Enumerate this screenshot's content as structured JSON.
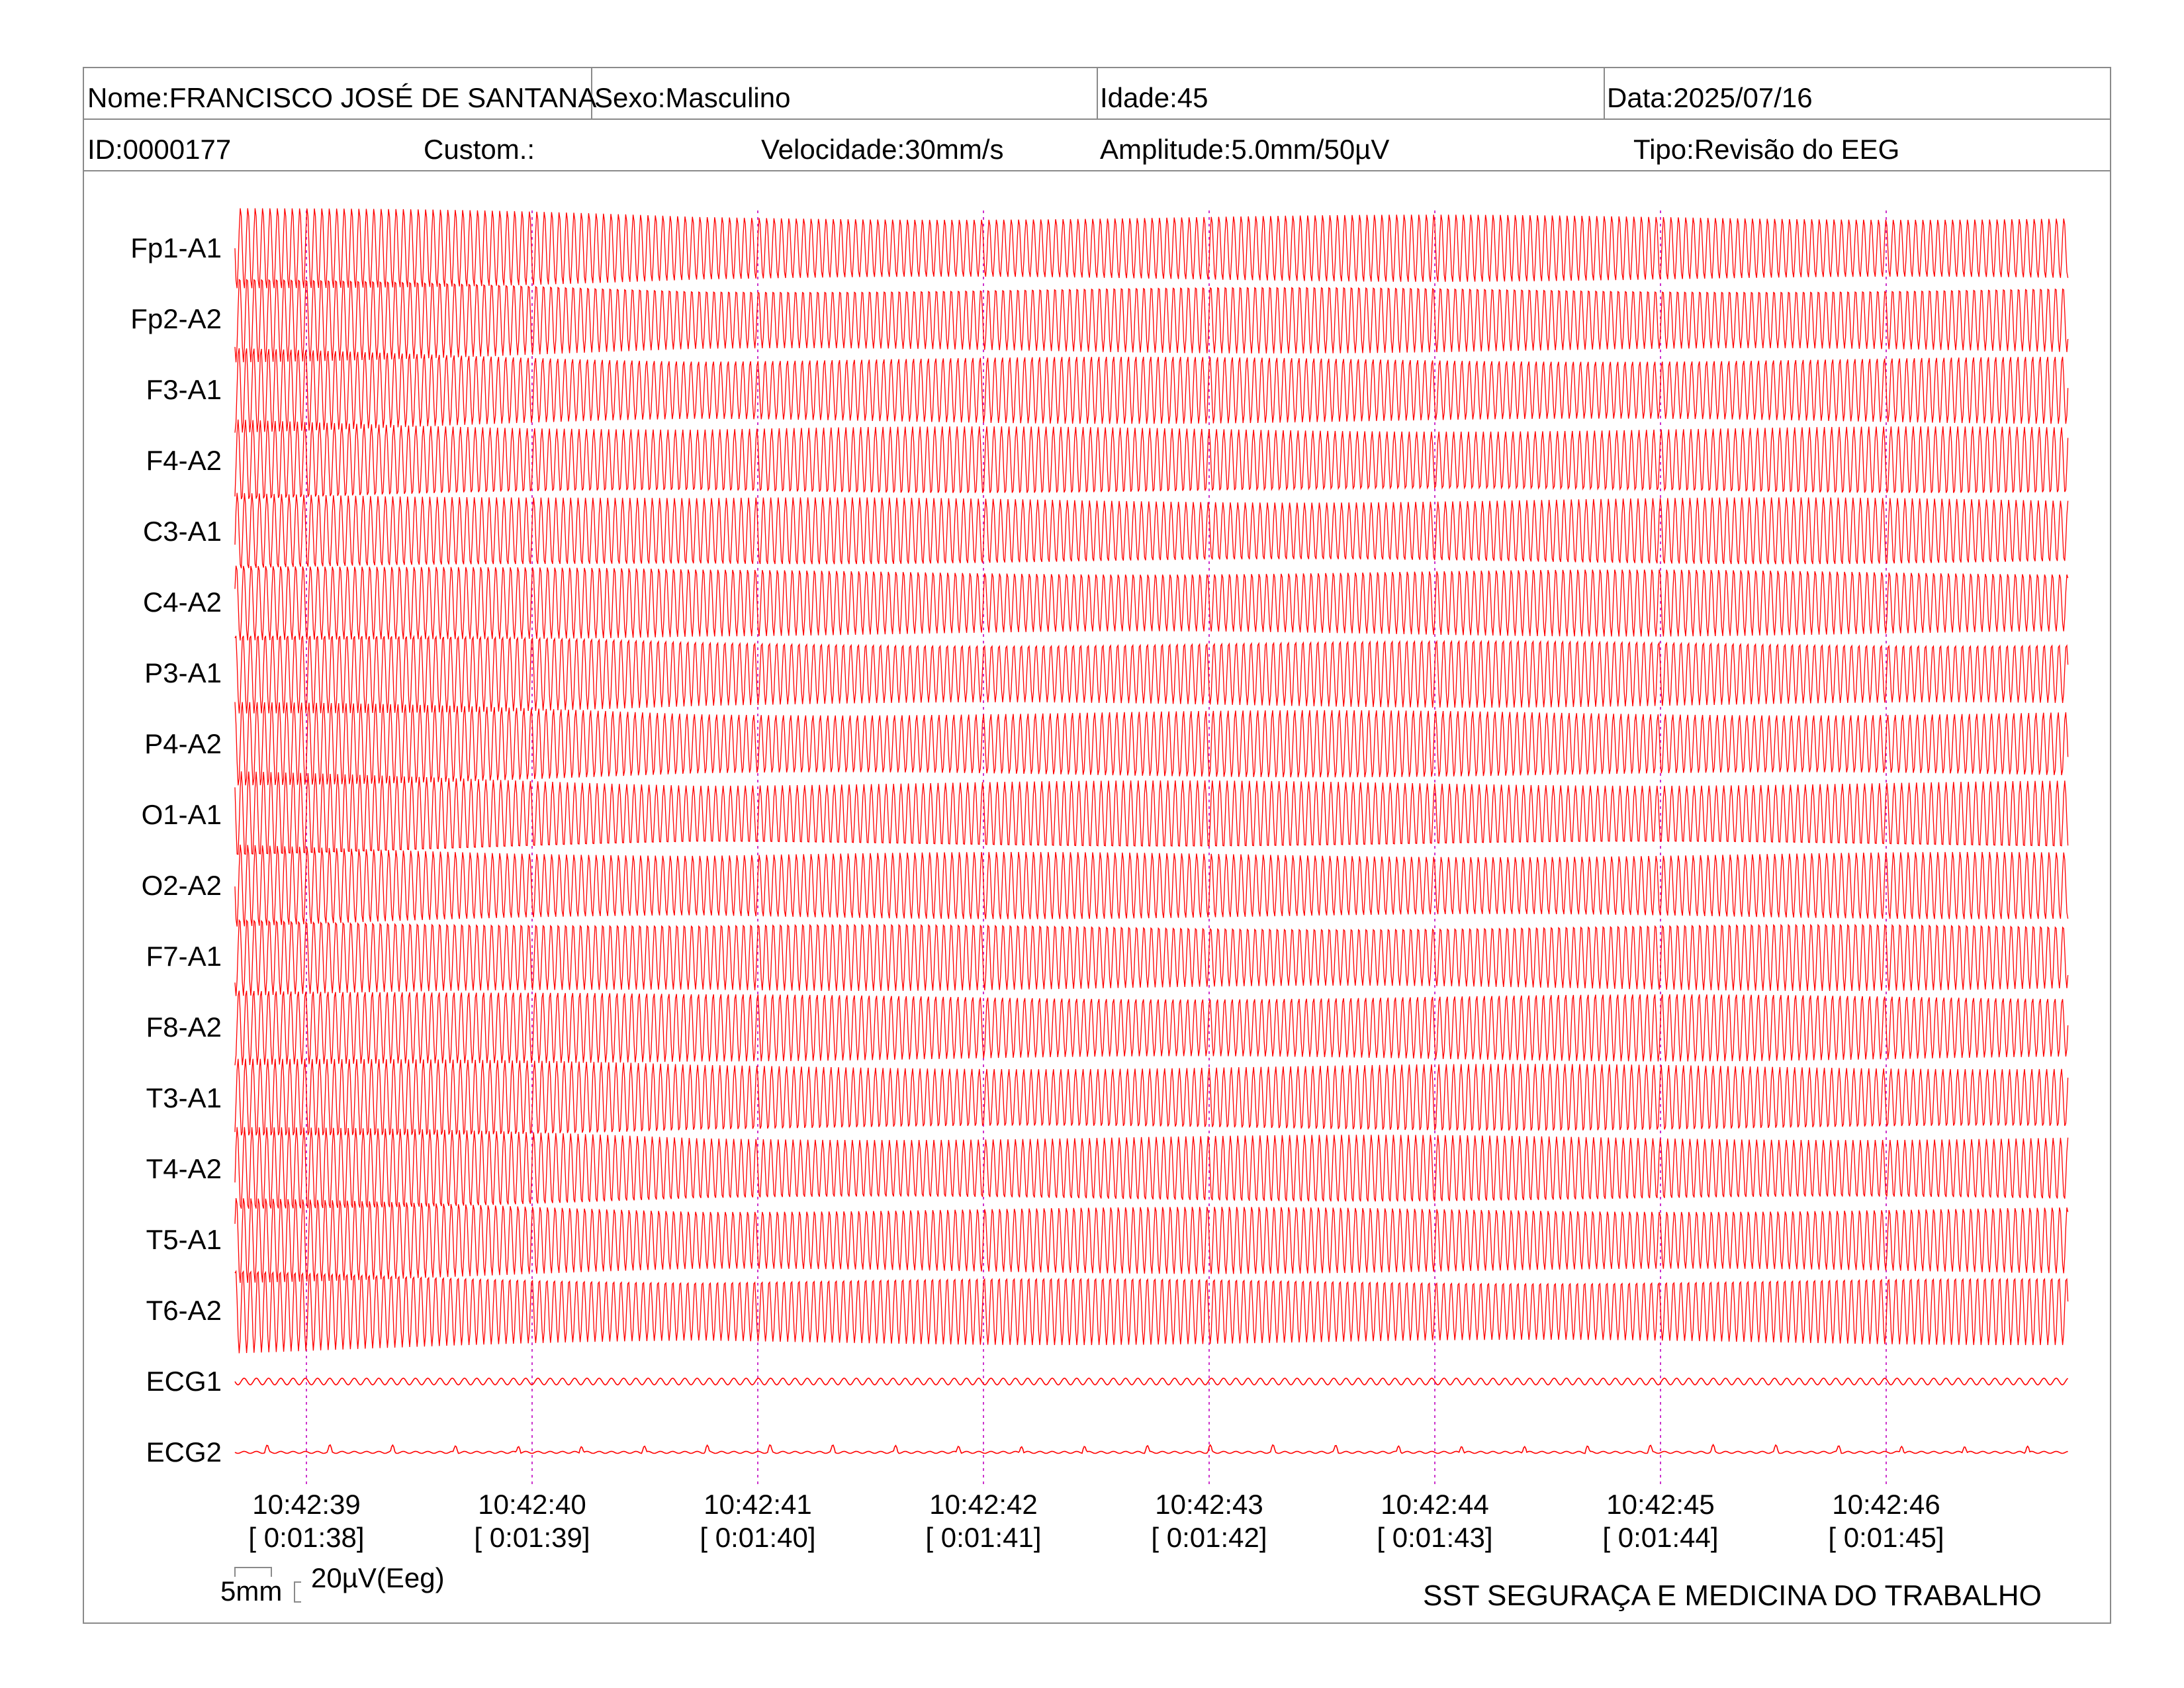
{
  "header": {
    "row1": [
      {
        "key": "name",
        "text": "Nome:FRANCISCO JOSÉ DE SANTANA"
      },
      {
        "key": "sex",
        "text": "Sexo:Masculino"
      },
      {
        "key": "age",
        "text": "Idade:45"
      },
      {
        "key": "date",
        "text": "Data:2025/07/16"
      }
    ],
    "row2": [
      {
        "key": "id",
        "text": "ID:0000177"
      },
      {
        "key": "custom",
        "text": "Custom.:"
      },
      {
        "key": "speed",
        "text": "Velocidade:30mm/s"
      },
      {
        "key": "amplitude",
        "text": "Amplitude:5.0mm/50µV"
      },
      {
        "key": "type",
        "text": "Tipo:Revisão do EEG"
      }
    ]
  },
  "channels": [
    "Fp1-A1",
    "Fp2-A2",
    "F3-A1",
    "F4-A2",
    "C3-A1",
    "C4-A2",
    "P3-A1",
    "P4-A2",
    "O1-A1",
    "O2-A2",
    "F7-A1",
    "F8-A2",
    "T3-A1",
    "T4-A2",
    "T5-A1",
    "T6-A2",
    "ECG1",
    "ECG2"
  ],
  "time_marks": [
    {
      "clock": "10:42:39",
      "elapsed": "[ 0:01:38]"
    },
    {
      "clock": "10:42:40",
      "elapsed": "[ 0:01:39]"
    },
    {
      "clock": "10:42:41",
      "elapsed": "[ 0:01:40]"
    },
    {
      "clock": "10:42:42",
      "elapsed": "[ 0:01:41]"
    },
    {
      "clock": "10:42:43",
      "elapsed": "[ 0:01:42]"
    },
    {
      "clock": "10:42:44",
      "elapsed": "[ 0:01:43]"
    },
    {
      "clock": "10:42:45",
      "elapsed": "[ 0:01:44]"
    },
    {
      "clock": "10:42:46",
      "elapsed": "[ 0:01:45]"
    }
  ],
  "scale": {
    "time_label": "5mm",
    "amp_label": "20µV(Eeg)"
  },
  "footer": {
    "organization": "SST SEGURAÇA E MEDICINA DO TRABALHO"
  },
  "colors": {
    "trace": "#ff0000",
    "time_marker": "#cc33cc",
    "border": "#8a8a8a"
  }
}
